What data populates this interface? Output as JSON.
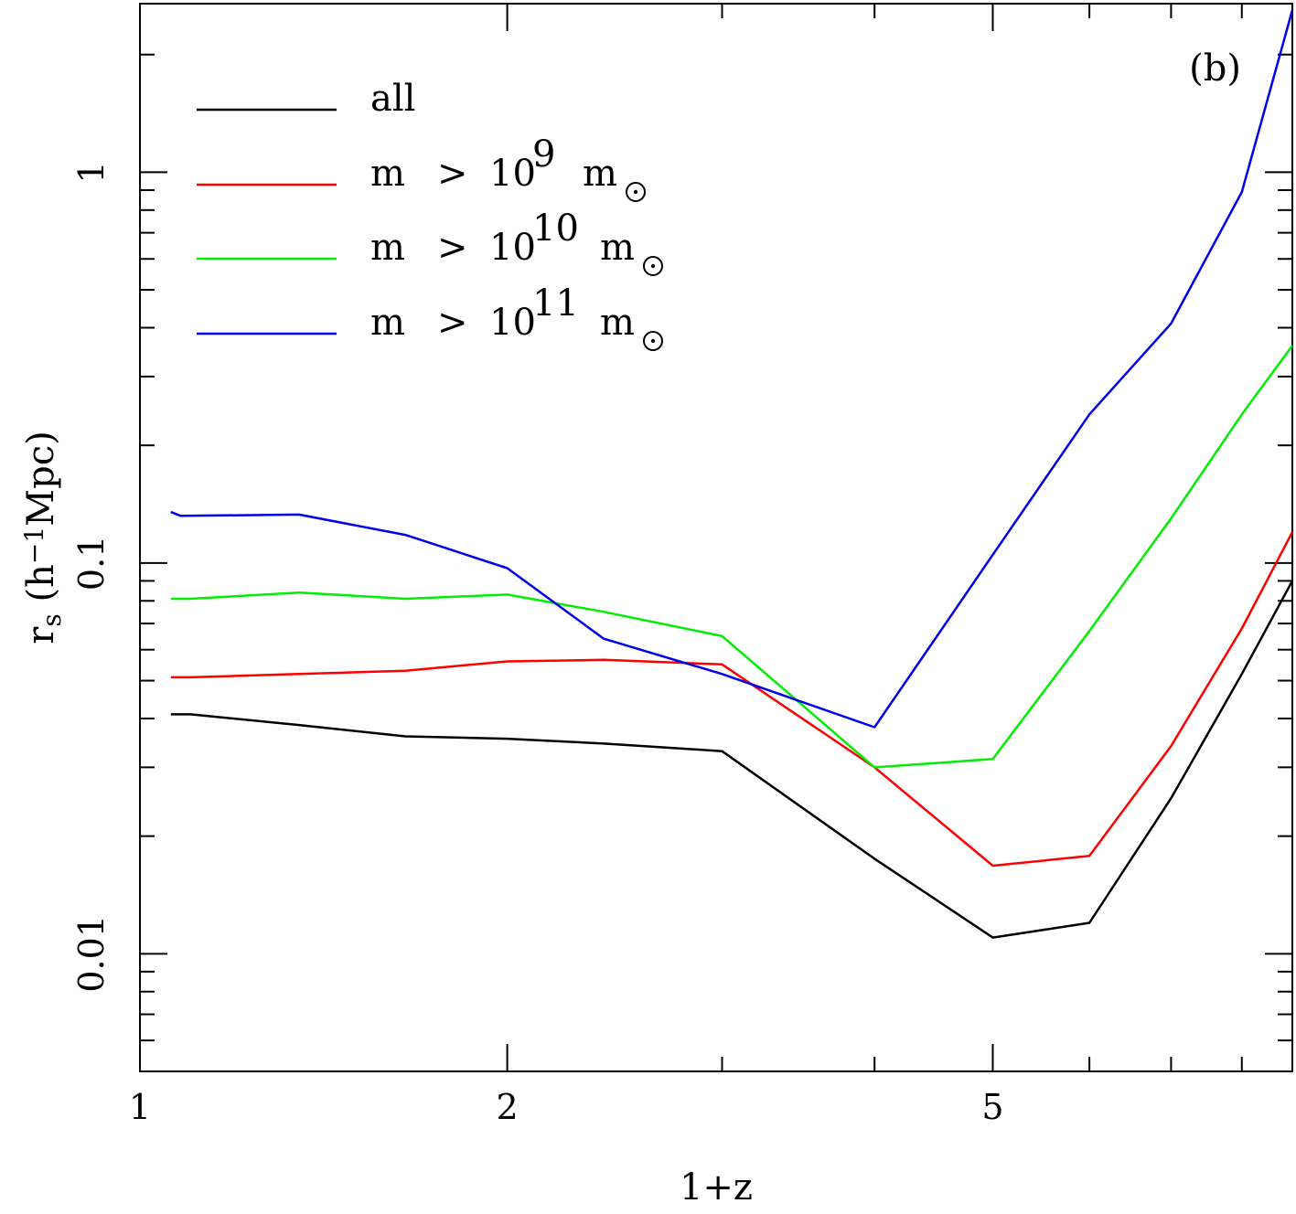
{
  "chart_data": {
    "type": "line",
    "title": "",
    "panel_label": "(b)",
    "xlabel": "1+z",
    "ylabel": {
      "parts": [
        {
          "text": "r",
          "style": "normal"
        },
        {
          "text": "s",
          "style": "sub"
        },
        {
          "text": " (h",
          "style": "normal"
        },
        {
          "text": "−1",
          "style": "sup"
        },
        {
          "text": "Mpc)",
          "style": "normal"
        }
      ]
    },
    "xscale": "log",
    "yscale": "log",
    "xlim": [
      1,
      8.8
    ],
    "ylim": [
      0.005,
      2.7
    ],
    "x_ticks": [
      {
        "value": 1,
        "label": "1"
      },
      {
        "value": 2,
        "label": "2"
      },
      {
        "value": 5,
        "label": "5"
      }
    ],
    "x_minor_ticks": [
      3,
      4,
      6,
      7,
      8
    ],
    "y_ticks": [
      {
        "value": 0.01,
        "label": "0.01"
      },
      {
        "value": 0.1,
        "label": "0.1"
      },
      {
        "value": 1,
        "label": "1"
      }
    ],
    "y_minor_ticks": [
      0.006,
      0.007,
      0.008,
      0.009,
      0.02,
      0.03,
      0.04,
      0.05,
      0.06,
      0.07,
      0.08,
      0.09,
      0.2,
      0.3,
      0.4,
      0.5,
      0.6,
      0.7,
      0.8,
      0.9,
      2
    ],
    "legend_position": "top-left",
    "series": [
      {
        "name": "all",
        "legend": {
          "m": "",
          "gt": "",
          "base": "all",
          "exp": "",
          "msun": ""
        },
        "color": "#000000",
        "x": [
          1.06,
          1.1,
          1.35,
          1.65,
          2.0,
          2.4,
          3.0,
          4.0,
          5.0,
          6.0,
          7.0,
          8.0,
          8.8
        ],
        "y": [
          0.041,
          0.041,
          0.0385,
          0.036,
          0.0355,
          0.0345,
          0.033,
          0.0175,
          0.011,
          0.012,
          0.025,
          0.052,
          0.09
        ]
      },
      {
        "name": "m > 10^9 m_sun",
        "legend": {
          "m": "m",
          "gt": ">",
          "base": "10",
          "exp": "9",
          "msun": "m"
        },
        "color": "#ff0000",
        "x": [
          1.06,
          1.1,
          1.35,
          1.65,
          2.0,
          2.4,
          3.0,
          4.0,
          5.0,
          6.0,
          7.0,
          8.0,
          8.8
        ],
        "y": [
          0.051,
          0.051,
          0.052,
          0.053,
          0.056,
          0.0565,
          0.055,
          0.03,
          0.0168,
          0.0178,
          0.034,
          0.068,
          0.12
        ]
      },
      {
        "name": "m > 10^10 m_sun",
        "legend": {
          "m": "m",
          "gt": ">",
          "base": "10",
          "exp": "10",
          "msun": "m"
        },
        "color": "#00ee00",
        "x": [
          1.06,
          1.1,
          1.35,
          1.65,
          2.0,
          2.4,
          3.0,
          4.0,
          5.0,
          6.0,
          7.0,
          8.0,
          8.8
        ],
        "y": [
          0.081,
          0.081,
          0.084,
          0.081,
          0.083,
          0.075,
          0.065,
          0.03,
          0.0315,
          0.067,
          0.13,
          0.24,
          0.36
        ]
      },
      {
        "name": "m > 10^11 m_sun",
        "legend": {
          "m": "m",
          "gt": ">",
          "base": "10",
          "exp": "11",
          "msun": "m"
        },
        "color": "#0000ee",
        "x": [
          1.06,
          1.08,
          1.35,
          1.65,
          2.0,
          2.4,
          3.0,
          4.0,
          5.0,
          6.0,
          7.0,
          8.0,
          8.8
        ],
        "y": [
          0.135,
          0.132,
          0.133,
          0.118,
          0.097,
          0.064,
          0.052,
          0.038,
          0.105,
          0.24,
          0.41,
          0.89,
          2.6
        ]
      }
    ]
  }
}
